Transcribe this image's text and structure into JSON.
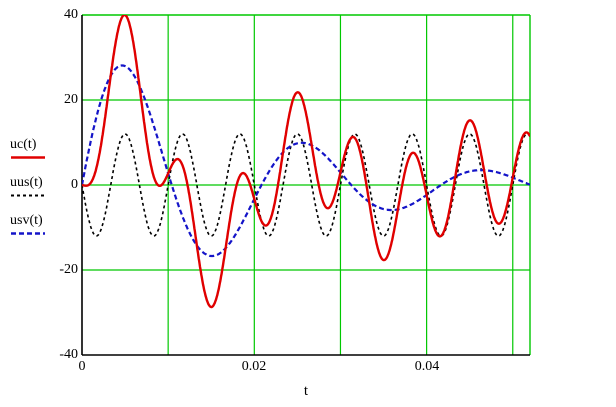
{
  "figure": {
    "background": "#ffffff",
    "grid_color": "#00c800",
    "axis_color": "#000000",
    "x_axis": {
      "label": "t",
      "tick_labels": [
        "0",
        "0.02",
        "0.04"
      ],
      "tick_values": [
        0,
        0.02,
        0.04
      ],
      "grid_values": [
        0.01,
        0.02,
        0.03,
        0.04,
        0.05
      ]
    },
    "y_axis": {
      "tick_labels": [
        "40",
        "20",
        "0",
        "-20",
        "-40"
      ],
      "tick_values": [
        40,
        20,
        0,
        -20,
        -40
      ],
      "grid_values": [
        20,
        0,
        -20
      ]
    }
  },
  "chart_data": {
    "type": "line",
    "title": "",
    "xlabel": "t",
    "ylabel": "",
    "x_range": [
      0,
      0.052
    ],
    "y_range": [
      -40,
      40
    ],
    "grid": "on",
    "legend_position": "left-outside",
    "t_ms": [
      0,
      1,
      2,
      3,
      4,
      5,
      6,
      7,
      8,
      9,
      10,
      11,
      12,
      13,
      14,
      15,
      16,
      17,
      18,
      19,
      20,
      21,
      22,
      23,
      24,
      25,
      26,
      27,
      28,
      29,
      30,
      31,
      32,
      33,
      34,
      35,
      36,
      37,
      38,
      39,
      40,
      41,
      42,
      43,
      44,
      45,
      46,
      47,
      48,
      49,
      50,
      51,
      52
    ],
    "series": [
      {
        "name": "uc(t)",
        "color": "#e00000",
        "style": "solid",
        "dash": "",
        "role": "total response = uus(t) + usv(t)",
        "model": {
          "kind": "sum",
          "of": [
            1,
            2
          ]
        },
        "samples": [
          0,
          0.5,
          7.1,
          20.7,
          34.6,
          40,
          33,
          18,
          4.7,
          -0.2,
          2.7,
          6.1,
          2.3,
          -9.5,
          -22.8,
          -28.7,
          -23.2,
          -10.5,
          0.2,
          2.2,
          -3.3,
          -9.1,
          -7.3,
          3.2,
          15.9,
          21.8,
          16.9,
          5.2,
          -4,
          -4.4,
          3,
          10.3,
          9.8,
          0.2,
          -11.9,
          -17.7,
          -12.9,
          -1.9,
          6.6,
          6,
          -2.3,
          -10.6,
          -11,
          -2.1,
          9.6,
          15.2,
          10.5,
          -0.3,
          -8.3,
          -7.2,
          1.7,
          10.6,
          11.5
        ]
      },
      {
        "name": "uus(t)",
        "color": "#000000",
        "style": "dashed",
        "dash": "3 3",
        "role": "steady-state component, 150 Hz sine, amplitude 12",
        "model": {
          "kind": "sine",
          "amplitude": 12,
          "freq_hz": 150,
          "phase_rad": 3.14159
        },
        "samples": [
          0,
          -9.7,
          -11.4,
          -3.7,
          7.1,
          12,
          7.1,
          -3.7,
          -11.4,
          -9.7,
          0,
          9.7,
          11.4,
          3.7,
          -7.1,
          -12,
          -7.1,
          3.7,
          11.4,
          9.7,
          0,
          -9.7,
          -11.4,
          -3.7,
          7.1,
          12,
          7.1,
          -3.7,
          -11.4,
          -9.7,
          0,
          9.7,
          11.4,
          3.7,
          -7.1,
          -12,
          -7.1,
          3.7,
          11.4,
          9.7,
          0,
          -9.7,
          -11.4,
          -3.7,
          7.1,
          12,
          7.1,
          -3.7,
          -11.4,
          -9.7,
          0,
          9.7,
          11.4
        ]
      },
      {
        "name": "usv(t)",
        "color": "#1414c8",
        "style": "dashed",
        "dash": "5 3",
        "role": "free (transient) damped component, ~48 Hz, decaying",
        "model": {
          "kind": "damped_sine",
          "amplitude": 36,
          "freq_hz": 48,
          "decay_per_s": 50,
          "phase_rad": 0
        },
        "samples": [
          0,
          10.2,
          18.5,
          24.4,
          27.5,
          28,
          25.9,
          21.8,
          16.1,
          9.5,
          2.7,
          -3.6,
          -9.1,
          -13.2,
          -15.8,
          -16.7,
          -16.1,
          -14.2,
          -11.2,
          -7.6,
          -3.3,
          0.6,
          4.1,
          6.9,
          8.9,
          9.8,
          9.8,
          8.9,
          7.4,
          5.3,
          3,
          0.6,
          -1.6,
          -3.5,
          -4.9,
          -5.7,
          -5.9,
          -5.6,
          -4.8,
          -3.7,
          -2.3,
          -0.9,
          0.4,
          1.6,
          2.6,
          3.2,
          3.5,
          3.4,
          3.1,
          2.5,
          1.7,
          0.9,
          0.1
        ]
      }
    ]
  }
}
